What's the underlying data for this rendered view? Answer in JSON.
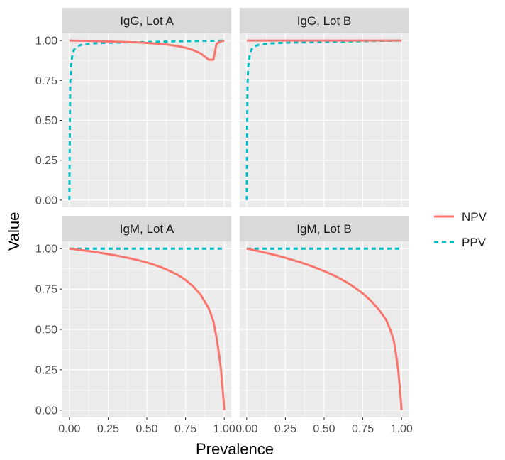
{
  "chart_data": {
    "type": "line",
    "xlabel": "Prevalence",
    "ylabel": "Value",
    "xlim": [
      0,
      1
    ],
    "ylim": [
      0,
      1
    ],
    "x_ticks": [
      "0.00",
      "0.25",
      "0.50",
      "0.75",
      "1.00"
    ],
    "y_ticks": [
      "0.00",
      "0.25",
      "0.50",
      "0.75",
      "1.00"
    ],
    "grid": true,
    "legend_position": "right",
    "legend": [
      {
        "name": "NPV",
        "color": "#F8766D",
        "style": "solid"
      },
      {
        "name": "PPV",
        "color": "#00BFC4",
        "style": "dashed"
      }
    ],
    "x": [
      0,
      0.005,
      0.01,
      0.02,
      0.03,
      0.05,
      0.075,
      0.1,
      0.15,
      0.2,
      0.25,
      0.3,
      0.35,
      0.4,
      0.45,
      0.5,
      0.55,
      0.6,
      0.65,
      0.7,
      0.75,
      0.8,
      0.85,
      0.9,
      0.93,
      0.95,
      0.97,
      0.98,
      0.99,
      0.995,
      1
    ],
    "panels": [
      {
        "title": "IgG, Lot A",
        "series": [
          {
            "name": "NPV",
            "values": [
              1,
              0.9999,
              0.9998,
              0.9996,
              0.9995,
              0.9991,
              0.9986,
              0.998,
              0.997,
              0.996,
              0.9945,
              0.993,
              0.9915,
              0.9895,
              0.9875,
              0.985,
              0.9815,
              0.978,
              0.9725,
              0.965,
              0.955,
              0.94,
              0.918,
              0.88,
              0.88,
              0.98,
              0.99,
              0.995,
              0.997,
              0.998,
              1
            ]
          },
          {
            "name": "PPV",
            "values": [
              0,
              0.72,
              0.84,
              0.915,
              0.943,
              0.962,
              0.973,
              0.978,
              0.982,
              0.984,
              0.986,
              0.987,
              0.988,
              0.989,
              0.99,
              0.991,
              0.992,
              0.993,
              0.994,
              0.995,
              0.996,
              0.997,
              0.998,
              0.998,
              0.999,
              0.999,
              0.999,
              1,
              1,
              1,
              1
            ]
          }
        ]
      },
      {
        "title": "IgG, Lot B",
        "series": [
          {
            "name": "NPV",
            "values": [
              1,
              1,
              1,
              1,
              1,
              1,
              1,
              1,
              1,
              1,
              1,
              1,
              1,
              1,
              1,
              1,
              1,
              1,
              1,
              1,
              1,
              1,
              1,
              1,
              1,
              1,
              1,
              1,
              1,
              1,
              1
            ]
          },
          {
            "name": "PPV",
            "values": [
              0,
              0.72,
              0.84,
              0.915,
              0.943,
              0.962,
              0.973,
              0.978,
              0.982,
              0.984,
              0.986,
              0.987,
              0.988,
              0.989,
              0.99,
              0.991,
              0.992,
              0.993,
              0.994,
              0.995,
              0.996,
              0.997,
              0.998,
              0.998,
              0.999,
              0.999,
              0.999,
              1,
              1,
              1,
              1
            ]
          }
        ]
      },
      {
        "title": "IgM, Lot A",
        "series": [
          {
            "name": "NPV",
            "values": [
              1,
              0.9994,
              0.9988,
              0.9976,
              0.9964,
              0.994,
              0.991,
              0.988,
              0.981,
              0.974,
              0.966,
              0.958,
              0.948,
              0.938,
              0.927,
              0.914,
              0.899,
              0.882,
              0.861,
              0.837,
              0.806,
              0.766,
              0.711,
              0.63,
              0.55,
              0.45,
              0.32,
              0.24,
              0.13,
              0.07,
              0
            ]
          },
          {
            "name": "PPV",
            "values": [
              1,
              1,
              1,
              1,
              1,
              1,
              1,
              1,
              1,
              1,
              1,
              1,
              1,
              1,
              1,
              1,
              1,
              1,
              1,
              1,
              1,
              1,
              1,
              1,
              1,
              1,
              1,
              1,
              1,
              1,
              1
            ]
          }
        ]
      },
      {
        "title": "IgM, Lot B",
        "series": [
          {
            "name": "NPV",
            "values": [
              1,
              0.9991,
              0.998,
              0.996,
              0.994,
              0.99,
              0.985,
              0.979,
              0.968,
              0.956,
              0.943,
              0.929,
              0.914,
              0.898,
              0.88,
              0.861,
              0.84,
              0.816,
              0.789,
              0.758,
              0.722,
              0.679,
              0.627,
              0.56,
              0.49,
              0.43,
              0.31,
              0.23,
              0.125,
              0.066,
              0
            ]
          },
          {
            "name": "PPV",
            "values": [
              1,
              1,
              1,
              1,
              1,
              1,
              1,
              1,
              1,
              1,
              1,
              1,
              1,
              1,
              1,
              1,
              1,
              1,
              1,
              1,
              1,
              1,
              1,
              1,
              1,
              1,
              1,
              1,
              1,
              1,
              1
            ]
          }
        ]
      }
    ]
  }
}
